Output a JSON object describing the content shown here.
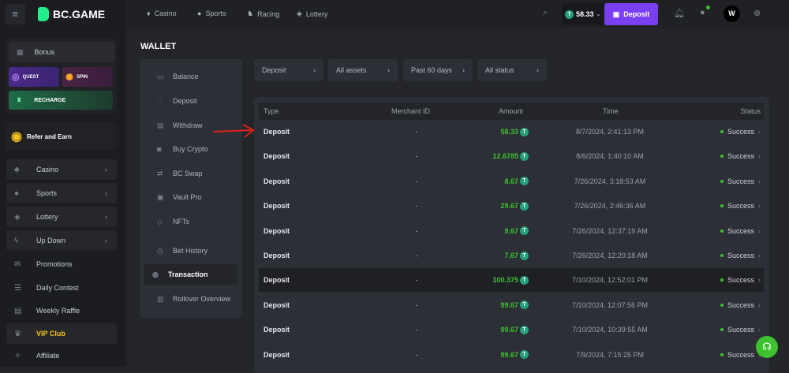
{
  "brand": "BC.GAME",
  "topnav": [
    "Casino",
    "Sports",
    "Racing",
    "Lottery"
  ],
  "balance": "58.33",
  "deposit_button": "Deposit",
  "sidebar": {
    "bonus": "Bonus",
    "quest": "QUEST",
    "spin": "SPIN",
    "recharge": "RECHARGE",
    "refer": "Refer and Earn",
    "items": [
      {
        "label": "Casino",
        "chev": true
      },
      {
        "label": "Sports",
        "chev": true
      },
      {
        "label": "Lottery",
        "chev": true
      },
      {
        "label": "Up Down",
        "chev": true
      },
      {
        "label": "Promotions"
      },
      {
        "label": "Daily Contest"
      },
      {
        "label": "Weekly Raffle"
      },
      {
        "label": "VIP Club"
      },
      {
        "label": "Affiliate"
      }
    ]
  },
  "wallet": {
    "title": "WALLET",
    "menu": [
      "Balance",
      "Deposit",
      "Withdraw",
      "Buy Crypto",
      "BC Swap",
      "Vault Pro",
      "NFTs",
      "Bet History",
      "Transaction",
      "Rollover Overview"
    ],
    "active": "Transaction"
  },
  "filters": [
    "Deposit",
    "All assets",
    "Past 60 days",
    "All status"
  ],
  "table": {
    "headers": [
      "Type",
      "Merchant ID",
      "Amount",
      "Time",
      "Status"
    ],
    "rows": [
      [
        "Deposit",
        "-",
        "58.33",
        "8/7/2024, 2:41:13 PM",
        "Success"
      ],
      [
        "Deposit",
        "-",
        "12.6785",
        "8/6/2024, 1:40:10 AM",
        "Success"
      ],
      [
        "Deposit",
        "-",
        "8.67",
        "7/26/2024, 3:18:53 AM",
        "Success"
      ],
      [
        "Deposit",
        "-",
        "29.67",
        "7/26/2024, 2:46:36 AM",
        "Success"
      ],
      [
        "Deposit",
        "-",
        "9.67",
        "7/26/2024, 12:37:19 AM",
        "Success"
      ],
      [
        "Deposit",
        "-",
        "7.67",
        "7/26/2024, 12:20:18 AM",
        "Success"
      ],
      [
        "Deposit",
        "-",
        "100.375",
        "7/10/2024, 12:52:01 PM",
        "Success"
      ],
      [
        "Deposit",
        "-",
        "99.67",
        "7/10/2024, 12:07:56 PM",
        "Success"
      ],
      [
        "Deposit",
        "-",
        "99.67",
        "7/10/2024, 10:39:55 AM",
        "Success"
      ],
      [
        "Deposit",
        "-",
        "99.67",
        "7/9/2024, 7:15:25 PM",
        "Success"
      ]
    ]
  },
  "colors": {
    "accent": "#7b3ff2",
    "success": "#3dc12e",
    "brand": "#24ee89"
  }
}
